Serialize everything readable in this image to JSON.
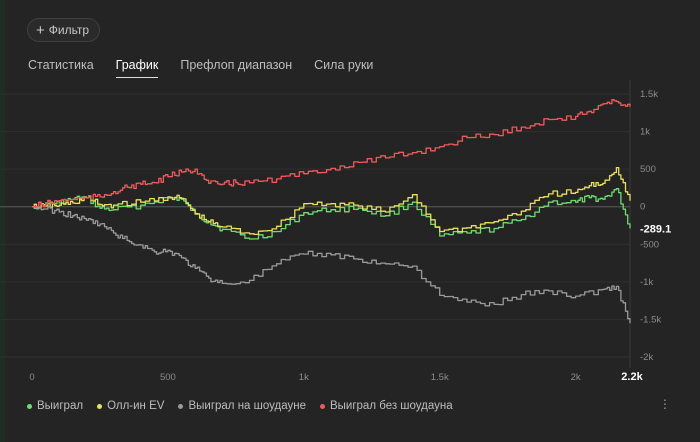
{
  "toolbar": {
    "filter_label": "Фильтр"
  },
  "tabs": [
    {
      "label": "Статистика",
      "active": false
    },
    {
      "label": "График",
      "active": true
    },
    {
      "label": "Префлоп диапазон",
      "active": false
    },
    {
      "label": "Сила руки",
      "active": false
    }
  ],
  "colors": {
    "won": "#6fdc6f",
    "allin_ev": "#e8e05a",
    "showdown": "#9a9a9a",
    "non_showdown": "#f05a5a"
  },
  "chart_data": {
    "type": "line",
    "x_ticks": [
      "0",
      "500",
      "1k",
      "1.5k",
      "2k",
      "2.2k"
    ],
    "x_tick_values": [
      0,
      500,
      1000,
      1500,
      2000,
      2200
    ],
    "xlim": [
      0,
      2200
    ],
    "y_ticks": [
      "1.5k",
      "1k",
      "500",
      "0",
      "-500",
      "-1k",
      "-1.5k",
      "-2k"
    ],
    "y_tick_values": [
      1500,
      1000,
      500,
      0,
      -500,
      -1000,
      -1500,
      -2000
    ],
    "ylim": [
      -2000,
      1500
    ],
    "end_label": "-289.1",
    "series": [
      {
        "name": "Выиграл",
        "color": "#6fdc6f",
        "x": [
          0,
          50,
          100,
          150,
          200,
          250,
          300,
          400,
          500,
          550,
          600,
          650,
          700,
          800,
          900,
          1000,
          1100,
          1200,
          1300,
          1400,
          1500,
          1600,
          1700,
          1800,
          1900,
          2000,
          2050,
          2100,
          2150,
          2200
        ],
        "y": [
          0,
          50,
          50,
          100,
          120,
          -20,
          -40,
          20,
          120,
          100,
          -100,
          -200,
          -300,
          -430,
          -330,
          -80,
          -40,
          -20,
          -120,
          60,
          -390,
          -350,
          -290,
          -170,
          60,
          60,
          120,
          100,
          240,
          -289
        ]
      },
      {
        "name": "Олл-ин EV",
        "color": "#e8e05a",
        "x": [
          0,
          50,
          100,
          150,
          200,
          250,
          300,
          400,
          500,
          550,
          600,
          650,
          700,
          800,
          900,
          1000,
          1100,
          1200,
          1300,
          1400,
          1500,
          1600,
          1700,
          1800,
          1900,
          2000,
          2050,
          2100,
          2150,
          2200
        ],
        "y": [
          0,
          10,
          20,
          50,
          120,
          30,
          20,
          60,
          130,
          110,
          -90,
          -200,
          -270,
          -360,
          -260,
          40,
          40,
          10,
          -70,
          160,
          -330,
          -280,
          -200,
          -60,
          170,
          190,
          280,
          310,
          520,
          80
        ]
      },
      {
        "name": "Выиграл на шоудауне",
        "color": "#9a9a9a",
        "x": [
          0,
          50,
          100,
          150,
          200,
          250,
          300,
          350,
          400,
          450,
          500,
          550,
          600,
          650,
          700,
          800,
          900,
          1000,
          1100,
          1200,
          1300,
          1400,
          1500,
          1600,
          1700,
          1800,
          1900,
          2000,
          2100,
          2150,
          2200
        ],
        "y": [
          0,
          -30,
          -70,
          -120,
          -180,
          -230,
          -350,
          -450,
          -510,
          -600,
          -580,
          -680,
          -820,
          -950,
          -1020,
          -980,
          -760,
          -630,
          -640,
          -700,
          -760,
          -790,
          -1180,
          -1270,
          -1300,
          -1170,
          -1120,
          -1190,
          -1100,
          -1060,
          -1550
        ]
      },
      {
        "name": "Выиграл без шоудауна",
        "color": "#f05a5a",
        "x": [
          0,
          50,
          100,
          150,
          200,
          250,
          300,
          350,
          400,
          450,
          500,
          550,
          600,
          650,
          700,
          750,
          800,
          900,
          1000,
          1100,
          1200,
          1300,
          1400,
          1500,
          1600,
          1700,
          1800,
          1900,
          2000,
          2050,
          2100,
          2150,
          2200
        ],
        "y": [
          0,
          40,
          80,
          100,
          120,
          130,
          200,
          260,
          300,
          320,
          400,
          460,
          500,
          310,
          300,
          320,
          320,
          370,
          440,
          510,
          590,
          650,
          720,
          800,
          920,
          960,
          1060,
          1160,
          1200,
          1270,
          1370,
          1400,
          1330
        ]
      }
    ]
  }
}
